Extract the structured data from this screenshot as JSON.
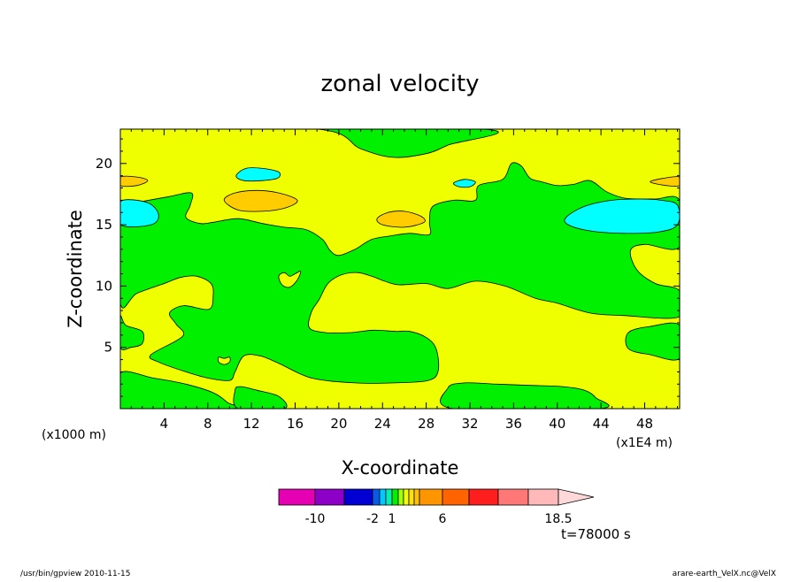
{
  "header": {
    "title": "zonal velocity"
  },
  "footer": {
    "left": "/usr/bin/gpview   2010-11-15",
    "right": "arare-earth_VelX.nc@VelX",
    "time_label": "t=78000 s"
  },
  "colors": {
    "background": "#ffffff",
    "green": "#00f000",
    "yellow": "#f0ff00",
    "cyan": "#00ffff",
    "orange": "#ffcc00"
  },
  "chart_data": {
    "type": "heatmap",
    "title": "zonal velocity",
    "xlabel": "X-coordinate",
    "ylabel": "Z-coordinate",
    "x_unit_left": "(x1000 m)",
    "x_unit_right": "(x1E4 m)",
    "xlim": [
      0,
      51.2
    ],
    "ylim": [
      0,
      22.8
    ],
    "x_ticks": [
      4,
      8,
      12,
      16,
      20,
      24,
      28,
      32,
      36,
      40,
      44,
      48
    ],
    "y_ticks": [
      5,
      10,
      15,
      20
    ],
    "grid": false,
    "colorbar": {
      "colors": [
        "#e600b4",
        "#8c00c8",
        "#0000d2",
        "#0a5ae6",
        "#00c8ff",
        "#00f0b4",
        "#00f000",
        "#a0ff00",
        "#f0ff00",
        "#ffe000",
        "#ffc000",
        "#ff9600",
        "#ff6400",
        "#ff1e1e",
        "#ff7878",
        "#ffb9b9"
      ],
      "tick_labels": [
        {
          "label": "-10",
          "after_box": 1
        },
        {
          "label": "-2",
          "after_box": 3
        },
        {
          "label": "1",
          "after_box": 6
        },
        {
          "label": "6",
          "after_box": 12
        },
        {
          "label": "18.5",
          "after_box": 16
        }
      ],
      "extend": "max",
      "extend_color": "#ffd9d9"
    },
    "regions": [
      {
        "name": "green-upper",
        "color": "#00f000",
        "points": [
          [
            2,
            22.8
          ],
          [
            18,
            22.8
          ],
          [
            22,
            21.2
          ],
          [
            25,
            20.5
          ],
          [
            28,
            20.8
          ],
          [
            30,
            21.5
          ],
          [
            33,
            22.8
          ],
          [
            2,
            22.8
          ]
        ]
      },
      {
        "name": "green-band",
        "color": "#00f000",
        "points": [
          [
            0,
            16.3
          ],
          [
            1.5,
            16.8
          ],
          [
            4.5,
            17.3
          ],
          [
            6.5,
            17.6
          ],
          [
            6.4,
            16.6
          ],
          [
            6,
            15.6
          ],
          [
            7.3,
            15.1
          ],
          [
            8.5,
            15.2
          ],
          [
            10.8,
            15.5
          ],
          [
            13,
            15.1
          ],
          [
            15,
            14.8
          ],
          [
            17,
            14.6
          ],
          [
            18.5,
            13.8
          ],
          [
            19.2,
            12.9
          ],
          [
            20,
            12.5
          ],
          [
            21.5,
            13
          ],
          [
            23,
            13.8
          ],
          [
            24.8,
            14.1
          ],
          [
            26.5,
            14.3
          ],
          [
            28.3,
            14.2
          ],
          [
            28.3,
            15.2
          ],
          [
            28.6,
            16.5
          ],
          [
            30.5,
            17
          ],
          [
            32.5,
            17
          ],
          [
            32.8,
            18.2
          ],
          [
            35,
            18.7
          ],
          [
            35.8,
            20
          ],
          [
            36.7,
            19.8
          ],
          [
            37.5,
            18.8
          ],
          [
            38.6,
            18.5
          ],
          [
            40,
            18.2
          ],
          [
            41.5,
            18.3
          ],
          [
            43,
            18.6
          ],
          [
            44.5,
            17.7
          ],
          [
            46,
            17.2
          ],
          [
            47.5,
            17.1
          ],
          [
            49,
            17.1
          ],
          [
            51.2,
            17
          ],
          [
            51.2,
            13.2
          ],
          [
            48,
            13.4
          ],
          [
            46.7,
            12.9
          ],
          [
            47.3,
            11.3
          ],
          [
            49,
            10.2
          ],
          [
            51.2,
            9.6
          ],
          [
            51.2,
            7.5
          ],
          [
            46,
            7.6
          ],
          [
            43,
            7.8
          ],
          [
            40,
            8.6
          ],
          [
            38,
            9
          ],
          [
            35.2,
            10
          ],
          [
            32.5,
            10.4
          ],
          [
            30,
            9.8
          ],
          [
            28,
            10.2
          ],
          [
            25.5,
            10.1
          ],
          [
            24.2,
            10.4
          ],
          [
            23,
            10.8
          ],
          [
            21.7,
            11.1
          ],
          [
            20.2,
            10.9
          ],
          [
            19,
            10.2
          ],
          [
            18.2,
            8.9
          ],
          [
            17.5,
            7.9
          ],
          [
            17.3,
            6.6
          ],
          [
            18.8,
            6.2
          ],
          [
            21,
            6.2
          ],
          [
            23.2,
            6.4
          ],
          [
            25.2,
            6.3
          ],
          [
            26.5,
            6.3
          ],
          [
            28,
            5.8
          ],
          [
            28.9,
            4.9
          ],
          [
            29.1,
            3.1
          ],
          [
            28.2,
            2.3
          ],
          [
            25,
            2.1
          ],
          [
            21.5,
            2.1
          ],
          [
            17.5,
            2.5
          ],
          [
            14.5,
            3.7
          ],
          [
            12.8,
            4.3
          ],
          [
            11.3,
            4.3
          ],
          [
            10.5,
            3
          ],
          [
            10,
            2.3
          ],
          [
            8,
            2.5
          ],
          [
            6,
            3
          ],
          [
            3.5,
            3.8
          ],
          [
            2.8,
            4.4
          ],
          [
            5.7,
            5.9
          ],
          [
            5.1,
            6.9
          ],
          [
            4.5,
            7.8
          ],
          [
            5.8,
            8.4
          ],
          [
            8.1,
            8.1
          ],
          [
            8.5,
            9.2
          ],
          [
            8.3,
            10.2
          ],
          [
            7,
            10.8
          ],
          [
            5.5,
            10.7
          ],
          [
            4,
            10.2
          ],
          [
            1.5,
            9.4
          ],
          [
            0,
            8.6
          ],
          [
            0,
            16.3
          ]
        ]
      },
      {
        "name": "green-bottom-left",
        "color": "#00f000",
        "points": [
          [
            0,
            2.9
          ],
          [
            3,
            2.5
          ],
          [
            6,
            2
          ],
          [
            8.5,
            1.3
          ],
          [
            9.8,
            0.5
          ],
          [
            10.2,
            0
          ],
          [
            0,
            0
          ],
          [
            0,
            2.9
          ]
        ]
      },
      {
        "name": "green-bottom-center",
        "color": "#00f000",
        "points": [
          [
            10.8,
            0
          ],
          [
            10.5,
            1.5
          ],
          [
            11,
            1.8
          ],
          [
            12.5,
            1.5
          ],
          [
            14.5,
            1
          ],
          [
            15,
            0
          ],
          [
            10.8,
            0
          ]
        ]
      },
      {
        "name": "green-bottom-right",
        "color": "#00f000",
        "points": [
          [
            30.5,
            0
          ],
          [
            30,
            1.7
          ],
          [
            31.5,
            2.1
          ],
          [
            34.5,
            2
          ],
          [
            37.5,
            1.9
          ],
          [
            40.5,
            1.8
          ],
          [
            42.5,
            1.5
          ],
          [
            43.5,
            0.9
          ],
          [
            43.8,
            0
          ],
          [
            30.5,
            0
          ]
        ]
      },
      {
        "name": "green-right",
        "color": "#00f000",
        "points": [
          [
            51.2,
            6.8
          ],
          [
            48.5,
            6.7
          ],
          [
            46.5,
            6.2
          ],
          [
            46.5,
            4.9
          ],
          [
            48.5,
            4.4
          ],
          [
            51.2,
            4.1
          ],
          [
            51.2,
            6.8
          ]
        ]
      },
      {
        "name": "green-left-small",
        "color": "#00f000",
        "points": [
          [
            0,
            7.5
          ],
          [
            0.5,
            6.8
          ],
          [
            2,
            6.3
          ],
          [
            2,
            5.3
          ],
          [
            1,
            5
          ],
          [
            0,
            5
          ],
          [
            0,
            7.5
          ]
        ]
      },
      {
        "name": "cyan-left",
        "color": "#00ffff",
        "points": [
          [
            0,
            16.9
          ],
          [
            2.5,
            16.8
          ],
          [
            3.5,
            15.8
          ],
          [
            2.8,
            15
          ],
          [
            0,
            15
          ],
          [
            0,
            16.9
          ]
        ]
      },
      {
        "name": "cyan-right",
        "color": "#00ffff",
        "points": [
          [
            40.8,
            15.6
          ],
          [
            42.5,
            16.5
          ],
          [
            45,
            17
          ],
          [
            47.5,
            17.1
          ],
          [
            49.5,
            17
          ],
          [
            51,
            16.6
          ],
          [
            51,
            15
          ],
          [
            49.2,
            14.4
          ],
          [
            46,
            14.3
          ],
          [
            43,
            14.5
          ],
          [
            41,
            15
          ],
          [
            40.8,
            15.6
          ]
        ]
      },
      {
        "name": "cyan-upper",
        "color": "#00ffff",
        "points": [
          [
            10.6,
            19
          ],
          [
            11.5,
            19.6
          ],
          [
            13,
            19.6
          ],
          [
            14.5,
            19.3
          ],
          [
            14.4,
            18.8
          ],
          [
            13,
            18.6
          ],
          [
            11.3,
            18.6
          ],
          [
            10.6,
            19
          ]
        ]
      },
      {
        "name": "cyan-small",
        "color": "#00ffff",
        "points": [
          [
            30.5,
            18.4
          ],
          [
            31.5,
            18.7
          ],
          [
            32.5,
            18.5
          ],
          [
            32,
            18.1
          ],
          [
            31,
            18.1
          ],
          [
            30.5,
            18.4
          ]
        ]
      },
      {
        "name": "orange-upper-left",
        "color": "#ffcc00",
        "points": [
          [
            9.5,
            17
          ],
          [
            10.5,
            17.6
          ],
          [
            12.5,
            17.8
          ],
          [
            14.5,
            17.6
          ],
          [
            16.2,
            17
          ],
          [
            15.2,
            16.4
          ],
          [
            13,
            16.1
          ],
          [
            10.8,
            16.2
          ],
          [
            9.5,
            17
          ]
        ]
      },
      {
        "name": "orange-center",
        "color": "#ffcc00",
        "points": [
          [
            23.5,
            15.5
          ],
          [
            24.5,
            16
          ],
          [
            26,
            16.1
          ],
          [
            27.5,
            15.7
          ],
          [
            27.8,
            15.2
          ],
          [
            26,
            14.8
          ],
          [
            24,
            15
          ],
          [
            23.5,
            15.5
          ]
        ]
      },
      {
        "name": "orange-left-edge",
        "color": "#ffcc00",
        "points": [
          [
            0,
            18.9
          ],
          [
            1.5,
            18.9
          ],
          [
            2.5,
            18.6
          ],
          [
            1.5,
            18.2
          ],
          [
            0,
            18.2
          ],
          [
            0,
            18.9
          ]
        ]
      },
      {
        "name": "orange-right-edge",
        "color": "#ffcc00",
        "points": [
          [
            51.2,
            18.9
          ],
          [
            49.8,
            18.8
          ],
          [
            48.5,
            18.5
          ],
          [
            50,
            18.2
          ],
          [
            51.2,
            18.2
          ],
          [
            51.2,
            18.9
          ]
        ]
      },
      {
        "name": "yellow-blob",
        "color": "#f0ff00",
        "points": [
          [
            14.5,
            10.8
          ],
          [
            15,
            11.1
          ],
          [
            15.5,
            10.8
          ],
          [
            16,
            11
          ],
          [
            16.5,
            11.2
          ],
          [
            16.2,
            10.5
          ],
          [
            15.5,
            9.9
          ],
          [
            14.8,
            10.1
          ],
          [
            14.5,
            10.8
          ]
        ]
      },
      {
        "name": "yellow-blob-2",
        "color": "#f0ff00",
        "points": [
          [
            9,
            4.2
          ],
          [
            9.5,
            4.1
          ],
          [
            10,
            4.2
          ],
          [
            10,
            3.8
          ],
          [
            9.5,
            3.6
          ],
          [
            9,
            3.8
          ],
          [
            9,
            4.2
          ]
        ]
      }
    ]
  }
}
